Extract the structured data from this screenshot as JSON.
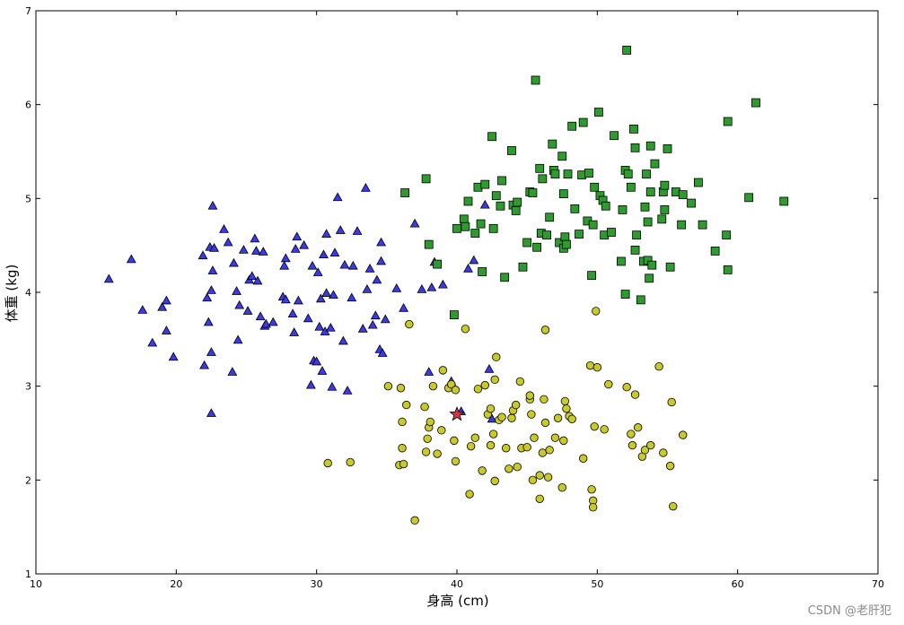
{
  "chart_data": {
    "type": "scatter",
    "xlabel": "身高 (cm)",
    "ylabel": "体重 (kg)",
    "xlim": [
      10,
      70
    ],
    "ylim": [
      1,
      7
    ],
    "xticks": [
      10,
      20,
      30,
      40,
      50,
      60,
      70
    ],
    "yticks": [
      1,
      2,
      3,
      4,
      5,
      6,
      7
    ],
    "grid": false,
    "series": [
      {
        "marker": "triangle",
        "color": "#3a3ae6",
        "points": [
          [
            15.2,
            4.14
          ],
          [
            16.8,
            4.35
          ],
          [
            17.6,
            3.81
          ],
          [
            18.3,
            3.46
          ],
          [
            19.0,
            3.84
          ],
          [
            19.3,
            3.91
          ],
          [
            19.3,
            3.59
          ],
          [
            19.8,
            3.31
          ],
          [
            21.9,
            4.39
          ],
          [
            22.0,
            3.22
          ],
          [
            22.2,
            3.94
          ],
          [
            22.3,
            3.68
          ],
          [
            22.4,
            4.48
          ],
          [
            22.5,
            4.02
          ],
          [
            22.5,
            3.36
          ],
          [
            22.5,
            2.71
          ],
          [
            22.6,
            4.92
          ],
          [
            22.6,
            4.23
          ],
          [
            22.7,
            4.47
          ],
          [
            23.4,
            4.67
          ],
          [
            23.7,
            4.53
          ],
          [
            24.0,
            3.15
          ],
          [
            24.1,
            4.31
          ],
          [
            24.3,
            4.01
          ],
          [
            24.4,
            3.49
          ],
          [
            24.5,
            3.86
          ],
          [
            24.8,
            4.45
          ],
          [
            25.1,
            3.8
          ],
          [
            25.2,
            4.13
          ],
          [
            25.4,
            4.17
          ],
          [
            25.6,
            4.57
          ],
          [
            25.7,
            4.44
          ],
          [
            25.8,
            4.12
          ],
          [
            26.0,
            3.74
          ],
          [
            26.2,
            4.43
          ],
          [
            26.3,
            3.64
          ],
          [
            26.4,
            3.66
          ],
          [
            26.9,
            3.68
          ],
          [
            27.6,
            3.95
          ],
          [
            27.7,
            4.28
          ],
          [
            27.8,
            3.92
          ],
          [
            27.8,
            4.36
          ],
          [
            28.3,
            3.77
          ],
          [
            28.4,
            3.57
          ],
          [
            28.5,
            4.46
          ],
          [
            28.6,
            4.59
          ],
          [
            28.7,
            3.91
          ],
          [
            29.1,
            4.5
          ],
          [
            29.4,
            3.72
          ],
          [
            29.6,
            3.01
          ],
          [
            29.7,
            4.28
          ],
          [
            29.8,
            3.27
          ],
          [
            30.0,
            3.26
          ],
          [
            30.1,
            4.21
          ],
          [
            30.2,
            3.63
          ],
          [
            30.3,
            3.93
          ],
          [
            30.4,
            3.16
          ],
          [
            30.5,
            4.4
          ],
          [
            30.6,
            3.58
          ],
          [
            30.7,
            4.62
          ],
          [
            30.7,
            3.99
          ],
          [
            31.0,
            3.62
          ],
          [
            31.1,
            2.99
          ],
          [
            31.2,
            3.97
          ],
          [
            31.3,
            4.42
          ],
          [
            31.5,
            5.01
          ],
          [
            31.7,
            4.66
          ],
          [
            31.9,
            3.48
          ],
          [
            32.0,
            4.29
          ],
          [
            32.2,
            2.95
          ],
          [
            32.5,
            3.94
          ],
          [
            32.6,
            4.28
          ],
          [
            32.9,
            4.65
          ],
          [
            33.3,
            3.61
          ],
          [
            33.5,
            5.11
          ],
          [
            33.6,
            4.03
          ],
          [
            33.8,
            4.25
          ],
          [
            34.0,
            3.65
          ],
          [
            34.2,
            3.75
          ],
          [
            34.3,
            4.13
          ],
          [
            34.5,
            3.39
          ],
          [
            34.6,
            4.53
          ],
          [
            34.6,
            4.33
          ],
          [
            34.7,
            3.35
          ],
          [
            34.9,
            3.71
          ],
          [
            35.7,
            4.04
          ],
          [
            36.2,
            3.83
          ],
          [
            37.0,
            4.73
          ],
          [
            37.5,
            4.03
          ],
          [
            38.0,
            3.15
          ],
          [
            38.2,
            4.05
          ],
          [
            38.4,
            4.32
          ],
          [
            39.0,
            4.08
          ],
          [
            39.6,
            3.05
          ],
          [
            40.3,
            2.73
          ],
          [
            40.8,
            4.25
          ],
          [
            41.2,
            4.34
          ],
          [
            42.0,
            4.93
          ],
          [
            42.3,
            3.18
          ],
          [
            42.5,
            2.65
          ]
        ]
      },
      {
        "marker": "square",
        "color": "#2e9b2e",
        "points": [
          [
            36.3,
            5.06
          ],
          [
            37.8,
            5.21
          ],
          [
            38.0,
            4.51
          ],
          [
            38.6,
            4.3
          ],
          [
            39.8,
            3.76
          ],
          [
            40.0,
            4.68
          ],
          [
            40.5,
            4.78
          ],
          [
            40.6,
            4.7
          ],
          [
            40.8,
            4.97
          ],
          [
            41.3,
            4.63
          ],
          [
            41.5,
            5.12
          ],
          [
            41.7,
            4.73
          ],
          [
            41.8,
            4.22
          ],
          [
            42.0,
            5.15
          ],
          [
            42.5,
            5.66
          ],
          [
            42.6,
            4.68
          ],
          [
            42.8,
            5.03
          ],
          [
            43.1,
            4.92
          ],
          [
            43.2,
            5.19
          ],
          [
            43.4,
            4.16
          ],
          [
            43.9,
            5.51
          ],
          [
            44.0,
            4.93
          ],
          [
            44.2,
            4.87
          ],
          [
            44.3,
            4.96
          ],
          [
            44.7,
            4.27
          ],
          [
            45.0,
            4.53
          ],
          [
            45.2,
            5.07
          ],
          [
            45.4,
            5.06
          ],
          [
            45.6,
            6.26
          ],
          [
            45.7,
            4.48
          ],
          [
            45.9,
            5.32
          ],
          [
            46.0,
            4.63
          ],
          [
            46.1,
            5.21
          ],
          [
            46.4,
            4.61
          ],
          [
            46.6,
            4.8
          ],
          [
            46.8,
            5.58
          ],
          [
            46.9,
            5.3
          ],
          [
            47.0,
            5.26
          ],
          [
            47.3,
            4.53
          ],
          [
            47.5,
            5.45
          ],
          [
            47.6,
            4.47
          ],
          [
            47.6,
            5.05
          ],
          [
            47.7,
            4.59
          ],
          [
            47.8,
            4.51
          ],
          [
            47.9,
            5.26
          ],
          [
            48.2,
            5.77
          ],
          [
            48.4,
            4.89
          ],
          [
            48.7,
            4.62
          ],
          [
            48.9,
            5.25
          ],
          [
            49.0,
            5.81
          ],
          [
            49.3,
            4.76
          ],
          [
            49.4,
            5.27
          ],
          [
            49.6,
            4.18
          ],
          [
            49.7,
            4.72
          ],
          [
            49.8,
            5.12
          ],
          [
            50.1,
            5.92
          ],
          [
            50.2,
            5.03
          ],
          [
            50.4,
            4.98
          ],
          [
            50.5,
            4.61
          ],
          [
            50.6,
            4.92
          ],
          [
            51.0,
            4.64
          ],
          [
            51.2,
            5.67
          ],
          [
            51.7,
            4.33
          ],
          [
            51.8,
            4.88
          ],
          [
            52.0,
            3.98
          ],
          [
            52.0,
            5.3
          ],
          [
            52.1,
            6.58
          ],
          [
            52.2,
            5.26
          ],
          [
            52.4,
            5.12
          ],
          [
            52.6,
            5.74
          ],
          [
            52.7,
            4.45
          ],
          [
            52.7,
            5.54
          ],
          [
            52.8,
            4.61
          ],
          [
            53.1,
            3.92
          ],
          [
            53.3,
            4.33
          ],
          [
            53.4,
            4.91
          ],
          [
            53.5,
            5.26
          ],
          [
            53.6,
            4.34
          ],
          [
            53.6,
            4.75
          ],
          [
            53.7,
            4.15
          ],
          [
            53.8,
            5.07
          ],
          [
            53.8,
            5.56
          ],
          [
            53.9,
            4.29
          ],
          [
            54.1,
            5.37
          ],
          [
            54.6,
            4.78
          ],
          [
            54.7,
            5.07
          ],
          [
            54.8,
            5.14
          ],
          [
            54.8,
            4.88
          ],
          [
            55.0,
            5.53
          ],
          [
            55.2,
            4.27
          ],
          [
            55.6,
            5.07
          ],
          [
            56.0,
            4.72
          ],
          [
            56.1,
            5.04
          ],
          [
            56.7,
            4.95
          ],
          [
            57.2,
            5.17
          ],
          [
            57.5,
            4.72
          ],
          [
            58.4,
            4.44
          ],
          [
            59.2,
            4.61
          ],
          [
            59.3,
            4.24
          ],
          [
            59.3,
            5.82
          ],
          [
            60.8,
            5.01
          ],
          [
            61.3,
            6.02
          ],
          [
            63.3,
            4.97
          ]
        ]
      },
      {
        "marker": "circle",
        "color": "#c9c92a",
        "points": [
          [
            30.8,
            2.18
          ],
          [
            32.4,
            2.19
          ],
          [
            35.1,
            3.0
          ],
          [
            35.9,
            2.16
          ],
          [
            36.0,
            2.98
          ],
          [
            36.1,
            2.62
          ],
          [
            36.1,
            2.34
          ],
          [
            36.2,
            2.17
          ],
          [
            36.4,
            2.8
          ],
          [
            36.6,
            3.66
          ],
          [
            37.0,
            1.57
          ],
          [
            37.7,
            2.78
          ],
          [
            37.8,
            2.3
          ],
          [
            37.9,
            2.44
          ],
          [
            38.0,
            2.56
          ],
          [
            38.1,
            2.62
          ],
          [
            38.3,
            3.0
          ],
          [
            38.6,
            2.28
          ],
          [
            38.9,
            2.53
          ],
          [
            39.0,
            3.17
          ],
          [
            39.4,
            2.98
          ],
          [
            39.6,
            3.02
          ],
          [
            39.8,
            2.42
          ],
          [
            39.9,
            2.2
          ],
          [
            39.9,
            2.96
          ],
          [
            40.6,
            3.61
          ],
          [
            40.9,
            1.85
          ],
          [
            41.0,
            2.36
          ],
          [
            41.3,
            2.45
          ],
          [
            41.5,
            2.97
          ],
          [
            41.8,
            2.1
          ],
          [
            42.0,
            3.01
          ],
          [
            42.2,
            2.7
          ],
          [
            42.4,
            2.76
          ],
          [
            42.4,
            2.37
          ],
          [
            42.6,
            2.49
          ],
          [
            42.7,
            3.07
          ],
          [
            42.7,
            1.99
          ],
          [
            42.8,
            3.31
          ],
          [
            43.0,
            2.64
          ],
          [
            43.2,
            2.67
          ],
          [
            43.5,
            2.34
          ],
          [
            43.7,
            2.12
          ],
          [
            43.9,
            2.66
          ],
          [
            44.0,
            2.74
          ],
          [
            44.2,
            2.8
          ],
          [
            44.3,
            2.14
          ],
          [
            44.5,
            3.05
          ],
          [
            44.6,
            2.34
          ],
          [
            45.0,
            2.35
          ],
          [
            45.2,
            2.86
          ],
          [
            45.2,
            2.9
          ],
          [
            45.3,
            2.7
          ],
          [
            45.4,
            2.0
          ],
          [
            45.5,
            2.45
          ],
          [
            45.9,
            1.8
          ],
          [
            45.9,
            2.05
          ],
          [
            46.1,
            2.29
          ],
          [
            46.2,
            2.86
          ],
          [
            46.3,
            3.6
          ],
          [
            46.3,
            2.61
          ],
          [
            46.5,
            2.03
          ],
          [
            46.6,
            2.32
          ],
          [
            47.0,
            2.45
          ],
          [
            47.2,
            2.66
          ],
          [
            47.5,
            1.92
          ],
          [
            47.6,
            2.42
          ],
          [
            47.7,
            2.84
          ],
          [
            47.8,
            2.76
          ],
          [
            48.0,
            2.68
          ],
          [
            48.2,
            2.65
          ],
          [
            49.0,
            2.23
          ],
          [
            49.5,
            3.22
          ],
          [
            49.6,
            1.9
          ],
          [
            49.7,
            1.78
          ],
          [
            49.7,
            1.71
          ],
          [
            49.8,
            2.57
          ],
          [
            49.9,
            3.8
          ],
          [
            50.0,
            3.2
          ],
          [
            50.5,
            2.54
          ],
          [
            50.8,
            3.02
          ],
          [
            52.1,
            2.99
          ],
          [
            52.4,
            2.49
          ],
          [
            52.5,
            2.37
          ],
          [
            52.7,
            2.91
          ],
          [
            52.9,
            2.56
          ],
          [
            53.2,
            2.25
          ],
          [
            53.4,
            2.32
          ],
          [
            53.8,
            2.37
          ],
          [
            54.4,
            3.21
          ],
          [
            54.7,
            2.29
          ],
          [
            55.2,
            2.15
          ],
          [
            55.3,
            2.83
          ],
          [
            55.4,
            1.72
          ],
          [
            56.1,
            2.48
          ]
        ]
      },
      {
        "marker": "star",
        "color": "#d9343d",
        "points": [
          [
            40.0,
            2.7
          ]
        ]
      }
    ]
  },
  "watermark": "CSDN @老肝犯"
}
